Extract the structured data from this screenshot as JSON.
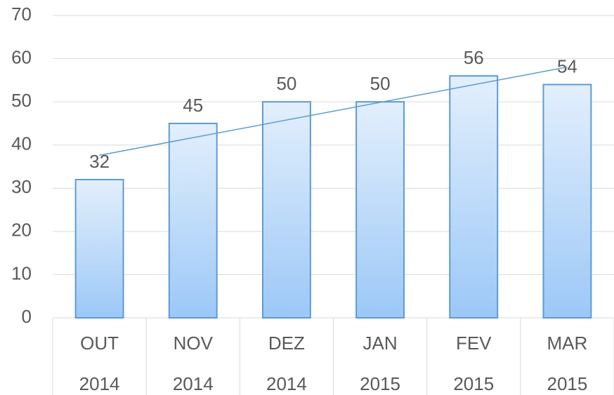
{
  "chart_data": {
    "type": "bar",
    "categories": [
      [
        "OUT",
        "2014"
      ],
      [
        "NOV",
        "2014"
      ],
      [
        "DEZ",
        "2014"
      ],
      [
        "JAN",
        "2015"
      ],
      [
        "FEV",
        "2015"
      ],
      [
        "MAR",
        "2015"
      ]
    ],
    "values": [
      32,
      45,
      50,
      50,
      56,
      54
    ],
    "color": "#5b9bd5",
    "ylim": [
      0,
      70
    ],
    "yticks": [
      0,
      10,
      20,
      30,
      40,
      50,
      60,
      70
    ],
    "grid": true,
    "trendline": "linear"
  }
}
